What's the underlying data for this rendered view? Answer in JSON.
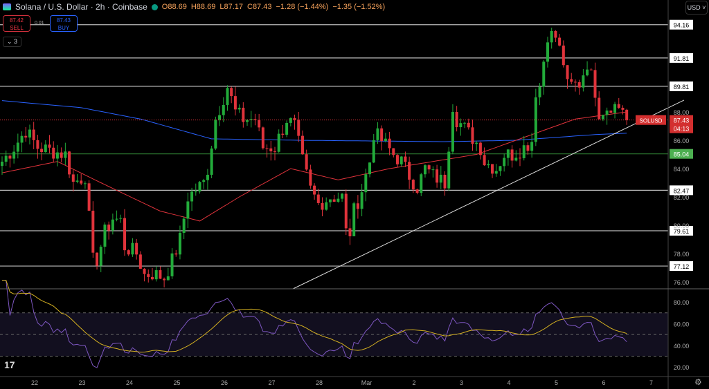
{
  "header": {
    "symbol": "Solana / U.S. Dollar · 2h · Coinbase",
    "open": "O88.69",
    "high": "H88.69",
    "low": "L87.17",
    "close": "C87.43",
    "change": "−1.28 (−1.44%)",
    "change2": "−1.35 (−1.52%)"
  },
  "trade": {
    "sell_price": "87.42",
    "sell_label": "SELL",
    "buy_price": "87.43",
    "buy_label": "BUY",
    "spread": "0.01"
  },
  "indicators_toggle": "3",
  "currency": "USD",
  "price_tag": {
    "symbol": "SOLUSD",
    "price": "87.43",
    "countdown": "04:13"
  },
  "colors": {
    "up": "#22ab3a",
    "down": "#e0333b",
    "ma_fast": "#e0333b",
    "ma_slow": "#2962ff",
    "rsi": "#7e57c2",
    "rsi_ma": "#d4b021",
    "support": "#4caf50"
  },
  "chart_data": {
    "type": "candlestick",
    "price_axis_ticks": [
      "88.00",
      "86.00",
      "84.00",
      "82.00",
      "80.00",
      "78.00",
      "76.00"
    ],
    "levels": [
      94.16,
      91.81,
      89.81,
      82.47,
      79.61,
      77.12
    ],
    "level_labels": [
      "94.16",
      "91.81",
      "89.81",
      "82.47",
      "79.61",
      "77.12"
    ],
    "support_level": 85.04,
    "support_label": "85.04",
    "trendline": [
      [
        73.5,
        75.5
      ],
      [
        172.5,
        88.83
      ]
    ],
    "close_keypoints": [
      [
        0,
        84.5
      ],
      [
        3,
        85.5
      ],
      [
        6,
        86.7
      ],
      [
        9,
        85.5
      ],
      [
        16,
        85
      ],
      [
        17,
        84
      ],
      [
        18,
        83
      ],
      [
        21,
        83.5
      ],
      [
        23,
        77.5
      ],
      [
        24,
        77.6
      ],
      [
        26,
        79.5
      ],
      [
        28,
        80.5
      ],
      [
        30,
        80.3
      ],
      [
        31,
        78.5
      ],
      [
        34,
        78
      ],
      [
        36,
        76.5
      ],
      [
        38,
        76.6
      ],
      [
        41,
        76.3
      ],
      [
        43,
        77.5
      ],
      [
        45,
        79
      ],
      [
        47,
        82
      ],
      [
        51,
        83
      ],
      [
        52,
        84
      ],
      [
        54,
        87.5
      ],
      [
        57,
        89.8
      ],
      [
        59,
        88
      ],
      [
        61,
        87.5
      ],
      [
        64,
        87.5
      ],
      [
        66,
        85.5
      ],
      [
        69,
        85.5
      ],
      [
        72,
        87.5
      ],
      [
        74,
        87
      ],
      [
        76,
        84.5
      ],
      [
        78,
        82.5
      ],
      [
        80,
        81.5
      ],
      [
        83,
        82
      ],
      [
        86,
        82
      ],
      [
        87,
        79.5
      ],
      [
        88,
        79.5
      ],
      [
        89,
        81
      ],
      [
        91,
        82.5
      ],
      [
        93,
        84.5
      ],
      [
        94,
        86.5
      ],
      [
        96,
        86
      ],
      [
        99,
        85
      ],
      [
        101,
        84.5
      ],
      [
        103,
        83.5
      ],
      [
        105,
        82.7
      ],
      [
        107,
        84
      ],
      [
        109,
        83.5
      ],
      [
        112,
        83
      ],
      [
        114,
        88.5
      ],
      [
        115,
        87.5
      ],
      [
        118,
        86.5
      ],
      [
        121,
        85.5
      ],
      [
        122,
        84.5
      ],
      [
        125,
        84
      ],
      [
        127,
        85
      ],
      [
        129,
        85
      ],
      [
        132,
        85.5
      ],
      [
        134,
        86
      ],
      [
        135,
        89.5
      ],
      [
        136,
        89.8
      ],
      [
        138,
        93.5
      ],
      [
        140,
        93.3
      ],
      [
        142,
        91.5
      ],
      [
        143,
        89.8
      ],
      [
        146,
        90
      ],
      [
        148,
        91.5
      ],
      [
        150,
        89.5
      ],
      [
        151,
        88
      ],
      [
        154,
        88.5
      ],
      [
        157,
        88.3
      ],
      [
        158,
        87.43
      ]
    ],
    "ma_fast_keypoints": [
      [
        0,
        83.7
      ],
      [
        14,
        84.5
      ],
      [
        25,
        83
      ],
      [
        40,
        81
      ],
      [
        50,
        80.3
      ],
      [
        60,
        82
      ],
      [
        73,
        84
      ],
      [
        85,
        83.2
      ],
      [
        98,
        84
      ],
      [
        120,
        85
      ],
      [
        135,
        86.5
      ],
      [
        145,
        87.5
      ],
      [
        158,
        88
      ]
    ],
    "ma_slow_keypoints": [
      [
        0,
        88.8
      ],
      [
        20,
        88.3
      ],
      [
        35,
        87.5
      ],
      [
        53,
        86.1
      ],
      [
        75,
        86
      ],
      [
        112,
        85.9
      ],
      [
        130,
        86
      ],
      [
        150,
        86.4
      ],
      [
        158,
        86.5
      ]
    ],
    "rsi_axis_ticks": [
      "80.00",
      "60.00",
      "40.00",
      "20.00"
    ],
    "rsi_bands": [
      70,
      50,
      30
    ],
    "time_labels": [
      "22",
      "23",
      "24",
      "25",
      "26",
      "27",
      "28",
      "Mar",
      "2",
      "3",
      "4",
      "5",
      "6",
      "7"
    ]
  }
}
